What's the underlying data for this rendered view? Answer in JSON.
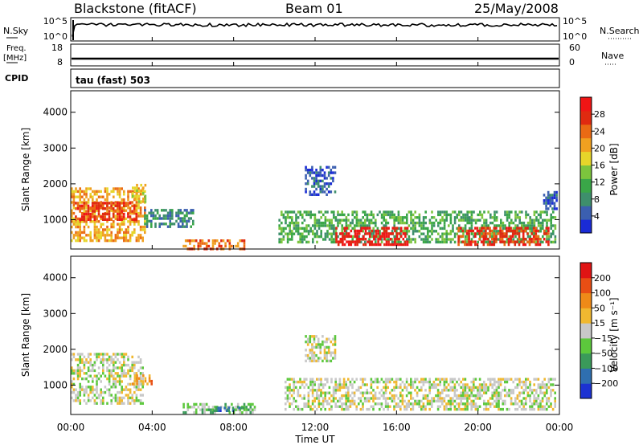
{
  "header": {
    "station": "Blackstone (fitACF)",
    "beam": "Beam 01",
    "date": "25/May/2008"
  },
  "top_panels": {
    "nsky_label": "N.Sky",
    "nsky_ticks": [
      "10^5",
      "10^0"
    ],
    "nsearch_label": "N.Search",
    "nsearch_ticks": [
      "10^5",
      "10^0"
    ],
    "freq_label_1": "Freq.",
    "freq_label_2": "[MHz]",
    "freq_ticks": [
      "18",
      "8"
    ],
    "nave_label": "Nave",
    "nave_ticks": [
      "60",
      "0"
    ],
    "cpid_label": "CPID",
    "cpid_value": "tau (fast) 503"
  },
  "chart_data": [
    {
      "type": "heatmap",
      "name": "power",
      "ylabel": "Slant Range [km]",
      "yticks": [
        "4000",
        "3000",
        "2000",
        "1000"
      ],
      "ylim": [
        180,
        4600
      ],
      "xlim": [
        0,
        24
      ],
      "colorbar_label": "Power [dB]",
      "colorbar_ticks": [
        "28",
        "24",
        "20",
        "16",
        "12",
        "8",
        "4"
      ],
      "colors": [
        "#1a2bd6",
        "#3b5fb0",
        "#3e8f6c",
        "#3aa648",
        "#7cc43d",
        "#e6d52a",
        "#f0a020",
        "#ea6a14",
        "#e02a10",
        "#f01515"
      ],
      "regions": [
        {
          "t0": 0.0,
          "t1": 3.6,
          "r0": 400,
          "r1": 1900,
          "level": 6
        },
        {
          "t0": 0.2,
          "t1": 3.2,
          "r0": 1000,
          "r1": 1500,
          "level": 8
        },
        {
          "t0": 3.0,
          "t1": 3.7,
          "r0": 1500,
          "r1": 2000,
          "level": 5
        },
        {
          "t0": 3.6,
          "t1": 6.0,
          "r0": 800,
          "r1": 1300,
          "level": 2
        },
        {
          "t0": 5.5,
          "t1": 8.5,
          "r0": 200,
          "r1": 450,
          "level": 7
        },
        {
          "t0": 10.2,
          "t1": 23.8,
          "r0": 350,
          "r1": 1250,
          "level": 3
        },
        {
          "t0": 13.0,
          "t1": 16.5,
          "r0": 300,
          "r1": 800,
          "level": 9
        },
        {
          "t0": 19.0,
          "t1": 23.5,
          "r0": 300,
          "r1": 800,
          "level": 8
        },
        {
          "t0": 11.5,
          "t1": 13.0,
          "r0": 1700,
          "r1": 2500,
          "level": 1
        },
        {
          "t0": 23.2,
          "t1": 23.9,
          "r0": 1300,
          "r1": 1800,
          "level": 1
        }
      ]
    },
    {
      "type": "heatmap",
      "name": "velocity",
      "ylabel": "Slant Range [km]",
      "yticks": [
        "4000",
        "3000",
        "2000",
        "1000"
      ],
      "ylim": [
        180,
        4600
      ],
      "xlim": [
        0,
        24
      ],
      "colorbar_label": "Velocity [m s⁻¹]",
      "colorbar_ticks": [
        "200",
        "100",
        "50",
        "15",
        "−15",
        "−50",
        "−100",
        "−200"
      ],
      "colors": [
        "#1c32d2",
        "#2f6fb0",
        "#3a9a5a",
        "#5cc83c",
        "#c8c8c8",
        "#f0b830",
        "#ef8a18",
        "#e84e14",
        "#e01414"
      ],
      "regions": [
        {
          "t0": 0.0,
          "t1": 3.5,
          "r0": 500,
          "r1": 1900,
          "level": 4
        },
        {
          "t0": 3.0,
          "t1": 4.0,
          "r0": 1000,
          "r1": 1300,
          "level": 6
        },
        {
          "t0": 5.5,
          "t1": 9.0,
          "r0": 200,
          "r1": 500,
          "level": 3
        },
        {
          "t0": 7.0,
          "t1": 8.5,
          "r0": 250,
          "r1": 400,
          "level": 1
        },
        {
          "t0": 10.5,
          "t1": 23.8,
          "r0": 350,
          "r1": 1200,
          "level": 4
        },
        {
          "t0": 11.5,
          "t1": 13.0,
          "r0": 1700,
          "r1": 2400,
          "level": 4
        }
      ]
    }
  ],
  "x_axis": {
    "ticks": [
      "00:00",
      "04:00",
      "08:00",
      "12:00",
      "16:00",
      "20:00",
      "00:00"
    ],
    "label": "Time UT"
  }
}
